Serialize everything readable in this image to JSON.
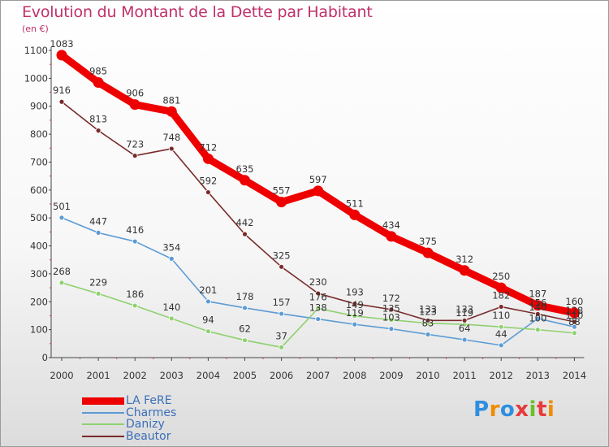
{
  "chart_data": {
    "type": "line",
    "title": "Evolution du Montant de la Dette par Habitant",
    "unit_label": "(en €)",
    "x": [
      "2000",
      "2001",
      "2002",
      "2003",
      "2004",
      "2005",
      "2006",
      "2007",
      "2008",
      "2009",
      "2010",
      "2011",
      "2012",
      "2013",
      "2014"
    ],
    "ylim": [
      0,
      1100
    ],
    "yticks": [
      "0",
      "100",
      "200",
      "300",
      "400",
      "500",
      "600",
      "700",
      "800",
      "900",
      "1000",
      "1100"
    ],
    "grid": false,
    "legend_position": "bottom-left",
    "series": [
      {
        "name": "LA FeRE",
        "color": "#ee0000",
        "values": [
          1083,
          985,
          906,
          881,
          712,
          635,
          557,
          597,
          511,
          434,
          375,
          312,
          250,
          187,
          160
        ],
        "labels": [
          "1083",
          "985",
          "906",
          "881",
          "712",
          "635",
          "557",
          "597",
          "511",
          "434",
          "375",
          "312",
          "250",
          "187",
          "160"
        ]
      },
      {
        "name": "Charmes",
        "color": "#5b9bd5",
        "values": [
          501,
          447,
          416,
          354,
          201,
          178,
          157,
          138,
          119,
          103,
          83,
          64,
          44,
          140,
          110
        ],
        "labels": [
          "501",
          "447",
          "416",
          "354",
          "201",
          "178",
          "157",
          "138",
          "119",
          "103",
          "83",
          "64",
          "44",
          "140",
          "110"
        ]
      },
      {
        "name": "Danizy",
        "color": "#8fd16f",
        "values": [
          268,
          229,
          186,
          140,
          94,
          62,
          37,
          176,
          149,
          135,
          123,
          119,
          110,
          100,
          88
        ],
        "labels": [
          "268",
          "229",
          "186",
          "140",
          "94",
          "62",
          "37",
          "176",
          "149",
          "135",
          "123",
          "119",
          "110",
          "100",
          "88"
        ]
      },
      {
        "name": "Beautor",
        "color": "#7a2a2a",
        "values": [
          916,
          813,
          723,
          748,
          592,
          442,
          325,
          230,
          193,
          172,
          133,
          133,
          182,
          156,
          128
        ],
        "labels": [
          "916",
          "813",
          "723",
          "748",
          "592",
          "442",
          "325",
          "230",
          "193",
          "172",
          "133",
          "133",
          "182",
          "156",
          "128"
        ]
      }
    ]
  },
  "logo_text": "Proxiti",
  "logo_colors": [
    "#2e8fe0",
    "#f08c00",
    "#2e8fe0",
    "#e53b3b",
    "#6cbf2a",
    "#e53b3b",
    "#f08c00"
  ]
}
